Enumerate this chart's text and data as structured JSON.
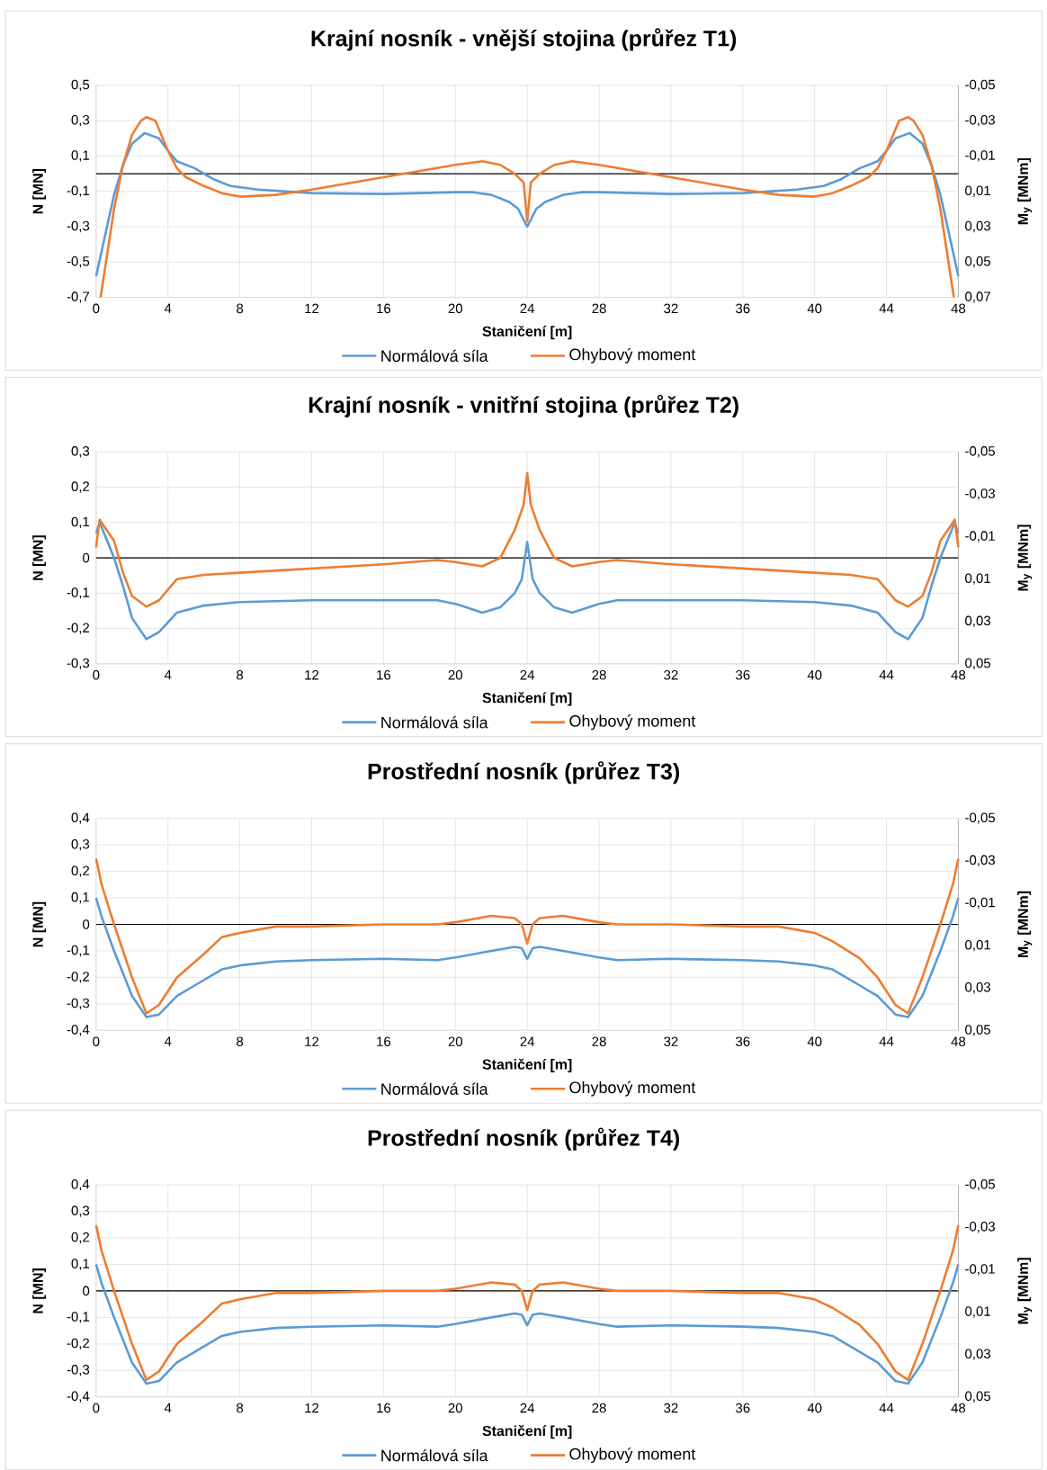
{
  "chart_data": [
    {
      "type": "line",
      "ref_lines": [
        {
          "axis": "y",
          "value": 0,
          "color": "#000000"
        }
      ],
      "title": "Krajní nosník - vnější stojina (průřez T1)",
      "xlabel": "Staničení [m]",
      "ylabel": "N [MN]",
      "y2label": "M$_{y}$ [MNm]",
      "grid": true,
      "legend": "bottom",
      "xlim": [
        0,
        48
      ],
      "xticks": [
        0,
        4,
        8,
        12,
        16,
        20,
        24,
        28,
        32,
        36,
        40,
        44,
        48
      ],
      "ylim": [
        -0.7,
        0.5
      ],
      "yticks": [
        {
          "value": -0.7,
          "label": "-0,7"
        },
        {
          "value": -0.5,
          "label": "-0,5"
        },
        {
          "value": -0.3,
          "label": "-0,3"
        },
        {
          "value": -0.1,
          "label": "-0,1"
        },
        {
          "value": 0.1,
          "label": "0,1"
        },
        {
          "value": 0.3,
          "label": "0,3"
        },
        {
          "value": 0.5,
          "label": "0,5"
        }
      ],
      "y2lim": [
        0.07,
        -0.05
      ],
      "y2ticks": [
        {
          "value": -0.05,
          "label": "-0,05"
        },
        {
          "value": -0.03,
          "label": "-0,03"
        },
        {
          "value": -0.01,
          "label": "-0,01"
        },
        {
          "value": 0.01,
          "label": "0,01"
        },
        {
          "value": 0.03,
          "label": "0,03"
        },
        {
          "value": 0.05,
          "label": "0,05"
        },
        {
          "value": 0.07,
          "label": "0,07"
        }
      ],
      "series": [
        {
          "name": "Normálová síla",
          "color": "#5b9bd5",
          "x": [
            0,
            0.5,
            1,
            1.5,
            2,
            2.7,
            3.5,
            4,
            4.5,
            5.5,
            6.5,
            7.5,
            9,
            12,
            16,
            20,
            21,
            22,
            23,
            23.5,
            24,
            24.5,
            25,
            26,
            27,
            28,
            32,
            36,
            39,
            40.5,
            41.5,
            42.5,
            43.5,
            44,
            44.5,
            45.3,
            46,
            46.5,
            47,
            47.5,
            48
          ],
          "values": [
            -0.58,
            -0.35,
            -0.12,
            0.05,
            0.17,
            0.23,
            0.2,
            0.13,
            0.07,
            0.03,
            -0.03,
            -0.07,
            -0.09,
            -0.11,
            -0.115,
            -0.105,
            -0.105,
            -0.12,
            -0.16,
            -0.2,
            -0.3,
            -0.2,
            -0.16,
            -0.12,
            -0.105,
            -0.105,
            -0.115,
            -0.11,
            -0.09,
            -0.07,
            -0.03,
            0.03,
            0.07,
            0.13,
            0.2,
            0.23,
            0.17,
            0.05,
            -0.12,
            -0.35,
            -0.58
          ]
        },
        {
          "name": "Ohybový moment",
          "color": "#ed7d31",
          "axis": "y2",
          "x": [
            0.25,
            1,
            1.5,
            2,
            2.5,
            2.8,
            3.3,
            4,
            4.5,
            5,
            6,
            7,
            8,
            10,
            12,
            16,
            20,
            21.5,
            22.5,
            23.3,
            23.8,
            24,
            24.2,
            24.7,
            25.5,
            26.5,
            28,
            32,
            36,
            38,
            40,
            41,
            42,
            43,
            43.5,
            44,
            44.7,
            45.2,
            45.5,
            46,
            46.5,
            47,
            47.75
          ],
          "values": [
            0.07,
            0.02,
            -0.005,
            -0.022,
            -0.03,
            -0.032,
            -0.03,
            -0.013,
            -0.003,
            0.002,
            0.007,
            0.011,
            0.013,
            0.012,
            0.009,
            0.002,
            -0.005,
            -0.007,
            -0.005,
            0,
            0.005,
            0.027,
            0.005,
            0,
            -0.005,
            -0.007,
            -0.005,
            0.002,
            0.009,
            0.012,
            0.013,
            0.011,
            0.007,
            0.002,
            -0.003,
            -0.013,
            -0.03,
            -0.032,
            -0.03,
            -0.022,
            -0.005,
            0.02,
            0.07
          ]
        }
      ]
    },
    {
      "type": "line",
      "ref_lines": [
        {
          "axis": "y",
          "value": 0,
          "color": "#000000"
        }
      ],
      "title": "Krajní nosník - vnitřní stojina (průřez T2)",
      "xlabel": "Staničení [m]",
      "ylabel": "N [MN]",
      "y2label": "M$_{y}$ [MNm]",
      "grid": true,
      "legend": "bottom",
      "xlim": [
        0,
        48
      ],
      "xticks": [
        0,
        4,
        8,
        12,
        16,
        20,
        24,
        28,
        32,
        36,
        40,
        44,
        48
      ],
      "ylim": [
        -0.3,
        0.3
      ],
      "yticks": [
        {
          "value": -0.3,
          "label": "-0,3"
        },
        {
          "value": -0.2,
          "label": "-0,2"
        },
        {
          "value": -0.1,
          "label": "-0,1"
        },
        0,
        {
          "value": 0.1,
          "label": "0,1"
        },
        {
          "value": 0.2,
          "label": "0,2"
        },
        {
          "value": 0.3,
          "label": "0,3"
        }
      ],
      "y2lim": [
        0.05,
        -0.05
      ],
      "y2ticks": [
        {
          "value": -0.05,
          "label": "-0,05"
        },
        {
          "value": -0.03,
          "label": "-0,03"
        },
        {
          "value": -0.01,
          "label": "-0,01"
        },
        {
          "value": 0.01,
          "label": "0,01"
        },
        {
          "value": 0.03,
          "label": "0,03"
        },
        {
          "value": 0.05,
          "label": "0,05"
        }
      ],
      "series": [
        {
          "name": "Normálová síla",
          "color": "#5b9bd5",
          "x": [
            0,
            0.2,
            1,
            1.5,
            2,
            2.8,
            3.5,
            4.5,
            6,
            8,
            12,
            16,
            19,
            20,
            21.5,
            22.5,
            23.3,
            23.7,
            24,
            24.3,
            24.7,
            25.5,
            26.5,
            28,
            29,
            32,
            36,
            40,
            42,
            43.5,
            44.5,
            45.2,
            46,
            46.5,
            47,
            47.8,
            48
          ],
          "values": [
            0.07,
            0.1,
            0.0,
            -0.08,
            -0.17,
            -0.23,
            -0.21,
            -0.155,
            -0.135,
            -0.125,
            -0.12,
            -0.12,
            -0.12,
            -0.13,
            -0.155,
            -0.14,
            -0.1,
            -0.06,
            0.045,
            -0.06,
            -0.1,
            -0.14,
            -0.155,
            -0.13,
            -0.12,
            -0.12,
            -0.12,
            -0.125,
            -0.135,
            -0.155,
            -0.21,
            -0.23,
            -0.17,
            -0.08,
            0.0,
            0.1,
            0.07
          ]
        },
        {
          "name": "Ohybový moment",
          "color": "#ed7d31",
          "axis": "y2",
          "x": [
            0,
            0.2,
            1,
            1.5,
            2,
            2.8,
            3.5,
            4.5,
            6,
            8,
            12,
            16,
            19,
            20,
            21.5,
            22.5,
            23.3,
            23.8,
            24,
            24.2,
            24.7,
            25.5,
            26.5,
            28,
            29,
            32,
            36,
            40,
            42,
            43.5,
            44.5,
            45.2,
            46,
            46.5,
            47,
            47.8,
            48
          ],
          "values": [
            -0.005,
            -0.018,
            -0.008,
            0.007,
            0.018,
            0.023,
            0.02,
            0.01,
            0.008,
            0.007,
            0.005,
            0.003,
            0.001,
            0.002,
            0.004,
            0,
            -0.013,
            -0.025,
            -0.04,
            -0.025,
            -0.013,
            0,
            0.004,
            0.002,
            0.001,
            0.003,
            0.005,
            0.007,
            0.008,
            0.01,
            0.02,
            0.023,
            0.018,
            0.007,
            -0.008,
            -0.018,
            -0.005
          ]
        }
      ]
    },
    {
      "type": "line",
      "ref_lines": [
        {
          "axis": "y",
          "value": 0,
          "color": "#000000"
        }
      ],
      "title": "Prostřední nosník (průřez T3)",
      "xlabel": "Staničení [m]",
      "ylabel": "N [MN]",
      "y2label": "M$_{y}$ [MNm]",
      "grid": true,
      "legend": "bottom",
      "xlim": [
        0,
        48
      ],
      "xticks": [
        0,
        4,
        8,
        12,
        16,
        20,
        24,
        28,
        32,
        36,
        40,
        44,
        48
      ],
      "ylim": [
        -0.4,
        0.4
      ],
      "yticks": [
        {
          "value": -0.4,
          "label": "-0,4"
        },
        {
          "value": -0.3,
          "label": "-0,3"
        },
        {
          "value": -0.2,
          "label": "-0,2"
        },
        {
          "value": -0.1,
          "label": "-0,1"
        },
        0,
        {
          "value": 0.1,
          "label": "0,1"
        },
        {
          "value": 0.2,
          "label": "0,2"
        },
        {
          "value": 0.3,
          "label": "0,3"
        },
        {
          "value": 0.4,
          "label": "0,4"
        }
      ],
      "y2lim": [
        0.05,
        -0.05
      ],
      "y2ticks": [
        {
          "value": -0.05,
          "label": "-0,05"
        },
        {
          "value": -0.03,
          "label": "-0,03"
        },
        {
          "value": -0.01,
          "label": "-0,01"
        },
        {
          "value": 0.01,
          "label": "0,01"
        },
        {
          "value": 0.03,
          "label": "0,03"
        },
        {
          "value": 0.05,
          "label": "0,05"
        }
      ],
      "series": [
        {
          "name": "Normálová síla",
          "color": "#5b9bd5",
          "x": [
            0,
            0.3,
            1,
            2,
            2.8,
            3.5,
            4.5,
            5.5,
            7,
            8,
            10,
            12,
            16,
            19,
            20,
            22,
            23.3,
            23.7,
            24,
            24.3,
            24.7,
            26,
            28,
            29,
            32,
            36,
            38,
            40,
            41,
            42.5,
            43.5,
            44.5,
            45.2,
            46,
            47,
            47.7,
            48
          ],
          "values": [
            0.1,
            0.03,
            -0.1,
            -0.27,
            -0.35,
            -0.34,
            -0.27,
            -0.23,
            -0.17,
            -0.155,
            -0.14,
            -0.135,
            -0.13,
            -0.135,
            -0.125,
            -0.1,
            -0.085,
            -0.09,
            -0.13,
            -0.09,
            -0.085,
            -0.1,
            -0.125,
            -0.135,
            -0.13,
            -0.135,
            -0.14,
            -0.155,
            -0.17,
            -0.23,
            -0.27,
            -0.34,
            -0.35,
            -0.27,
            -0.1,
            0.03,
            0.1
          ]
        },
        {
          "name": "Ohybový moment",
          "color": "#ed7d31",
          "axis": "y2",
          "x": [
            0,
            0.3,
            1,
            2,
            2.8,
            3.5,
            4.5,
            6,
            7,
            8,
            10,
            12,
            16,
            19,
            20,
            22,
            23.3,
            23.7,
            24,
            24.3,
            24.7,
            26,
            28,
            29,
            32,
            36,
            38,
            40,
            41,
            42.5,
            43.5,
            44.5,
            45.2,
            46,
            47,
            47.7,
            48
          ],
          "values": [
            -0.031,
            -0.019,
            0,
            0.025,
            0.042,
            0.038,
            0.025,
            0.014,
            0.006,
            0.004,
            0.001,
            0.001,
            0,
            0,
            -0.001,
            -0.004,
            -0.003,
            0,
            0.009,
            0,
            -0.003,
            -0.004,
            -0.001,
            0,
            0,
            0.001,
            0.001,
            0.004,
            0.008,
            0.016,
            0.025,
            0.038,
            0.042,
            0.025,
            0,
            -0.019,
            -0.031
          ]
        }
      ]
    },
    {
      "type": "line",
      "ref_lines": [
        {
          "axis": "y",
          "value": 0,
          "color": "#000000"
        }
      ],
      "title": "Prostřední nosník (průřez T4)",
      "xlabel": "Staničení [m]",
      "ylabel": "N [MN]",
      "y2label": "M$_{y}$ [MNm]",
      "grid": true,
      "legend": "bottom",
      "xlim": [
        0,
        48
      ],
      "xticks": [
        0,
        4,
        8,
        12,
        16,
        20,
        24,
        28,
        32,
        36,
        40,
        44,
        48
      ],
      "ylim": [
        -0.4,
        0.4
      ],
      "yticks": [
        {
          "value": -0.4,
          "label": "-0,4"
        },
        {
          "value": -0.3,
          "label": "-0,3"
        },
        {
          "value": -0.2,
          "label": "-0,2"
        },
        {
          "value": -0.1,
          "label": "-0,1"
        },
        0,
        {
          "value": 0.1,
          "label": "0,1"
        },
        {
          "value": 0.2,
          "label": "0,2"
        },
        {
          "value": 0.3,
          "label": "0,3"
        },
        {
          "value": 0.4,
          "label": "0,4"
        }
      ],
      "y2lim": [
        0.05,
        -0.05
      ],
      "y2ticks": [
        {
          "value": -0.05,
          "label": "-0,05"
        },
        {
          "value": -0.03,
          "label": "-0,03"
        },
        {
          "value": -0.01,
          "label": "-0,01"
        },
        {
          "value": 0.01,
          "label": "0,01"
        },
        {
          "value": 0.03,
          "label": "0,03"
        },
        {
          "value": 0.05,
          "label": "0,05"
        }
      ],
      "series": [
        {
          "name": "Normálová síla",
          "color": "#5b9bd5",
          "x": [
            0,
            0.3,
            1,
            2,
            2.8,
            3.5,
            4.5,
            5.5,
            7,
            8,
            10,
            12,
            16,
            19,
            20,
            22,
            23.3,
            23.7,
            24,
            24.3,
            24.7,
            26,
            28,
            29,
            32,
            36,
            38,
            40,
            41,
            42.5,
            43.5,
            44.5,
            45.2,
            46,
            47,
            47.7,
            48
          ],
          "values": [
            0.1,
            0.03,
            -0.1,
            -0.27,
            -0.35,
            -0.34,
            -0.27,
            -0.23,
            -0.17,
            -0.155,
            -0.14,
            -0.135,
            -0.13,
            -0.135,
            -0.125,
            -0.1,
            -0.085,
            -0.09,
            -0.13,
            -0.09,
            -0.085,
            -0.1,
            -0.125,
            -0.135,
            -0.13,
            -0.135,
            -0.14,
            -0.155,
            -0.17,
            -0.23,
            -0.27,
            -0.34,
            -0.35,
            -0.27,
            -0.1,
            0.03,
            0.1
          ]
        },
        {
          "name": "Ohybový moment",
          "color": "#ed7d31",
          "axis": "y2",
          "x": [
            0,
            0.3,
            1,
            2,
            2.8,
            3.5,
            4.5,
            6,
            7,
            8,
            10,
            12,
            16,
            19,
            20,
            22,
            23.3,
            23.7,
            24,
            24.3,
            24.7,
            26,
            28,
            29,
            32,
            36,
            38,
            40,
            41,
            42.5,
            43.5,
            44.5,
            45.2,
            46,
            47,
            47.7,
            48
          ],
          "values": [
            -0.031,
            -0.019,
            0,
            0.025,
            0.042,
            0.038,
            0.025,
            0.014,
            0.006,
            0.004,
            0.001,
            0.001,
            0,
            0,
            -0.001,
            -0.004,
            -0.003,
            0,
            0.009,
            0,
            -0.003,
            -0.004,
            -0.001,
            0,
            0,
            0.001,
            0.001,
            0.004,
            0.008,
            0.016,
            0.025,
            0.038,
            0.042,
            0.025,
            0,
            -0.019,
            -0.031
          ]
        }
      ]
    }
  ]
}
